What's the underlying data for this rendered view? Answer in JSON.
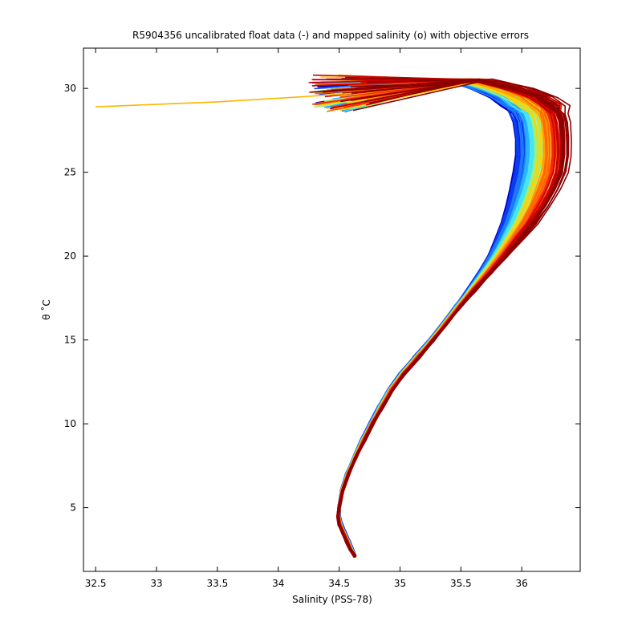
{
  "chart_data": {
    "type": "line",
    "title": "R5904356 uncalibrated float data (-) and mapped salinity (o) with objective errors",
    "xlabel": "Salinity (PSS-78)",
    "ylabel": "θ ˚C",
    "xlim": [
      32.4,
      36.48
    ],
    "ylim": [
      1.2,
      32.4
    ],
    "xticks": [
      32.5,
      33,
      33.5,
      34,
      34.5,
      35,
      35.5,
      36
    ],
    "xtick_labels": [
      "32.5",
      "33",
      "33.5",
      "34",
      "34.5",
      "35",
      "35.5",
      "36"
    ],
    "yticks": [
      5,
      10,
      15,
      20,
      25,
      30
    ],
    "ytick_labels": [
      "5",
      "10",
      "15",
      "20",
      "25",
      "30"
    ],
    "grid": false,
    "colormap": [
      "#0000c8",
      "#0a3cf0",
      "#1e78ff",
      "#28b4ff",
      "#46e6f0",
      "#a0f078",
      "#ffd200",
      "#ffa000",
      "#ff6400",
      "#f52800",
      "#c80000",
      "#8c0000"
    ],
    "series_profile": {
      "note_free": true,
      "theta": [
        30.5,
        30.0,
        29.5,
        29.0,
        28.5,
        28.0,
        27.0,
        26.0,
        25.0,
        24.0,
        23.0,
        22.0,
        21.0,
        20.0,
        19.0,
        18.0,
        17.0,
        16.0,
        15.0,
        14.0,
        13.0,
        12.0,
        11.0,
        10.0,
        9.0,
        8.0,
        7.0,
        6.0,
        5.0,
        4.5,
        4.0,
        3.5,
        3.0,
        2.5,
        2.1
      ],
      "salinity_fresh_end": [
        35.4,
        35.6,
        35.75,
        35.85,
        35.9,
        35.93,
        35.95,
        35.95,
        35.93,
        35.9,
        35.87,
        35.83,
        35.78,
        35.72,
        35.64,
        35.55,
        35.45,
        35.35,
        35.24,
        35.12,
        35.0,
        34.9,
        34.82,
        34.75,
        34.68,
        34.62,
        34.56,
        34.52,
        34.5,
        34.5,
        34.52,
        34.55,
        34.58,
        34.61,
        34.63
      ],
      "salinity_salty_end": [
        35.7,
        36.0,
        36.2,
        36.3,
        36.35,
        36.37,
        36.38,
        36.38,
        36.36,
        36.3,
        36.22,
        36.12,
        36.0,
        35.88,
        35.75,
        35.62,
        35.5,
        35.39,
        35.28,
        35.16,
        35.04,
        34.94,
        34.86,
        34.78,
        34.71,
        34.64,
        34.58,
        34.53,
        34.5,
        34.49,
        34.5,
        34.53,
        34.56,
        34.59,
        34.63
      ]
    },
    "surface_outlier": {
      "salinity": [
        32.5,
        33.5,
        34.2,
        34.6
      ],
      "theta": [
        28.9,
        29.2,
        29.5,
        29.7
      ],
      "color": "#ffb400"
    }
  }
}
